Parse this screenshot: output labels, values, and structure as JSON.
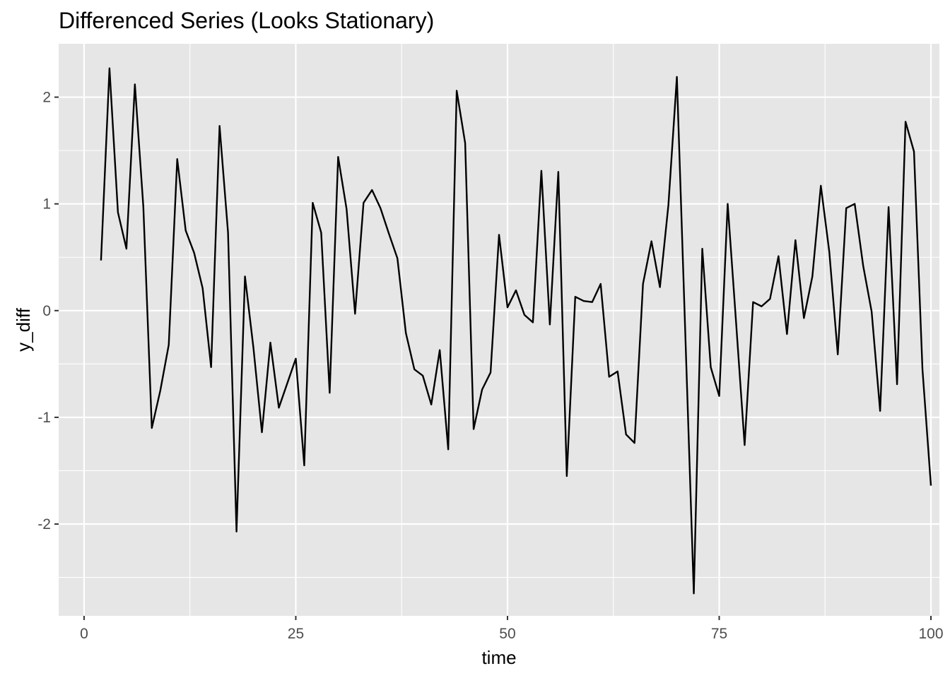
{
  "chart_data": {
    "type": "line",
    "title": "Differenced Series (Looks Stationary)",
    "xlabel": "time",
    "ylabel": "y_diff",
    "xlim": [
      -3,
      101
    ],
    "ylim": [
      -2.86,
      2.5
    ],
    "x_ticks": [
      0,
      25,
      50,
      75,
      100
    ],
    "x_tick_labels": [
      "0",
      "25",
      "50",
      "75",
      "100"
    ],
    "y_ticks": [
      -2,
      -1,
      0,
      1,
      2
    ],
    "y_tick_labels": [
      "-2",
      "-1",
      "0",
      "1",
      "2"
    ],
    "grid": true,
    "panel_background": "#e6e6e6",
    "grid_color": "#ffffff",
    "line_color": "#000000",
    "series": [
      {
        "x": [
          2,
          3,
          4,
          5,
          6,
          7,
          8,
          9,
          10,
          11,
          12,
          13,
          14,
          15,
          16,
          17,
          18,
          19,
          20,
          21,
          22,
          23,
          24,
          25,
          26,
          27,
          28,
          29,
          30,
          31,
          32,
          33,
          34,
          35,
          36,
          37,
          38,
          39,
          40,
          41,
          42,
          43,
          44,
          45,
          46,
          47,
          48,
          49,
          50,
          51,
          52,
          53,
          54,
          55,
          56,
          57,
          58,
          59,
          60,
          61,
          62,
          63,
          64,
          65,
          66,
          67,
          68,
          69,
          70,
          71,
          72,
          73,
          74,
          75,
          76,
          77,
          78,
          79,
          80,
          81,
          82,
          83,
          84,
          85,
          86,
          87,
          88,
          89,
          90,
          91,
          92,
          93,
          94,
          95,
          96,
          97,
          98,
          99,
          100
        ],
        "values": [
          0.47,
          2.27,
          0.92,
          0.58,
          2.12,
          0.97,
          -1.1,
          -0.75,
          -0.32,
          1.42,
          0.75,
          0.54,
          0.21,
          -0.53,
          1.73,
          0.73,
          -2.07,
          0.32,
          -0.35,
          -1.14,
          -0.3,
          -0.91,
          -0.68,
          -0.45,
          -1.45,
          1.01,
          0.73,
          -0.77,
          1.44,
          0.95,
          -0.03,
          1.01,
          1.13,
          0.96,
          0.72,
          0.49,
          -0.21,
          -0.55,
          -0.61,
          -0.88,
          -0.37,
          -1.3,
          2.06,
          1.57,
          -1.11,
          -0.74,
          -0.58,
          0.71,
          0.03,
          0.19,
          -0.04,
          -0.11,
          1.31,
          -0.13,
          1.3,
          -1.55,
          0.13,
          0.09,
          0.08,
          0.25,
          -0.62,
          -0.57,
          -1.16,
          -1.24,
          0.25,
          0.65,
          0.22,
          0.99,
          2.19,
          -0.23,
          -2.65,
          0.58,
          -0.53,
          -0.8,
          1.0,
          -0.12,
          -1.26,
          0.08,
          0.04,
          0.11,
          0.51,
          -0.22,
          0.66,
          -0.07,
          0.32,
          1.17,
          0.55,
          -0.41,
          0.96,
          1.0,
          0.42,
          -0.01,
          -0.94,
          0.97,
          -0.69,
          1.77,
          1.49,
          -0.55,
          -1.64
        ]
      }
    ]
  }
}
